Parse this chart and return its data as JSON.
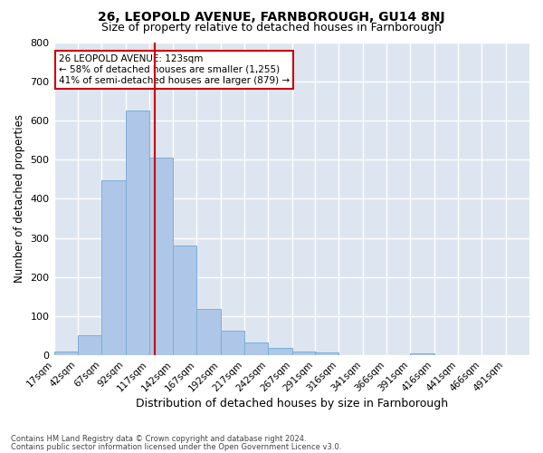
{
  "title1": "26, LEOPOLD AVENUE, FARNBOROUGH, GU14 8NJ",
  "title2": "Size of property relative to detached houses in Farnborough",
  "xlabel": "Distribution of detached houses by size in Farnborough",
  "ylabel": "Number of detached properties",
  "footnote1": "Contains HM Land Registry data © Crown copyright and database right 2024.",
  "footnote2": "Contains public sector information licensed under the Open Government Licence v3.0.",
  "annotation_line1": "26 LEOPOLD AVENUE: 123sqm",
  "annotation_line2": "← 58% of detached houses are smaller (1,255)",
  "annotation_line3": "41% of semi-detached houses are larger (879) →",
  "property_size": 123,
  "bin_edges": [
    17,
    42,
    67,
    92,
    117,
    142,
    167,
    192,
    217,
    242,
    267,
    291,
    316,
    341,
    366,
    391,
    416,
    441,
    466,
    491,
    516
  ],
  "bar_heights": [
    10,
    52,
    447,
    625,
    504,
    280,
    118,
    62,
    33,
    18,
    9,
    7,
    0,
    0,
    0,
    6,
    0,
    0,
    0,
    0
  ],
  "bar_color": "#aec6e8",
  "bar_edge_color": "#7bafd4",
  "vline_color": "#cc0000",
  "vline_x": 123,
  "ylim": [
    0,
    800
  ],
  "yticks": [
    0,
    100,
    200,
    300,
    400,
    500,
    600,
    700,
    800
  ],
  "background_color": "#dde5f0",
  "grid_color": "#ffffff",
  "title_fontsize": 10,
  "subtitle_fontsize": 9,
  "annotation_box_color": "#ffffff",
  "annotation_box_edge": "#cc0000"
}
